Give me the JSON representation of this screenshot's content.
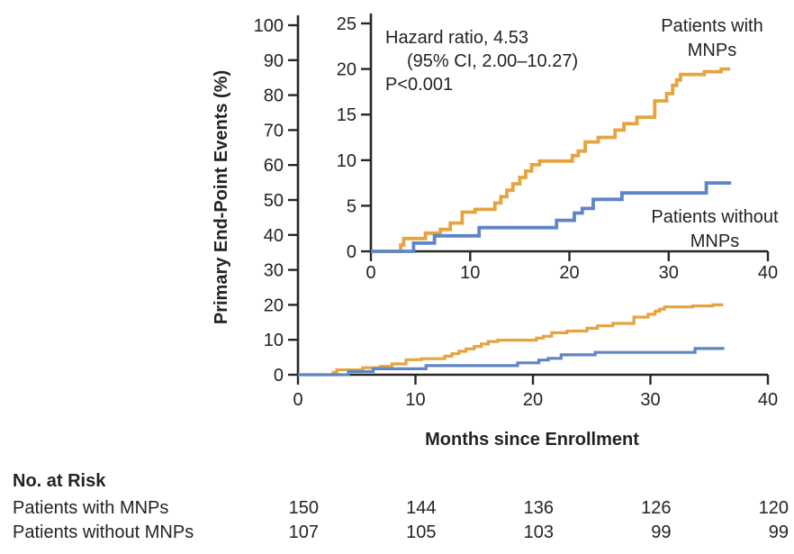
{
  "colors": {
    "with_mnps": "#E5A43F",
    "without_mnps": "#5F86C4",
    "axis": "#2B2624",
    "background": "#FFFFFF"
  },
  "chart_data": {
    "type": "line",
    "subtype": "kaplan-meier-step-with-inset",
    "title": "",
    "xlabel": "Months since Enrollment",
    "ylabel": "Primary End-Point Events (%)",
    "main_axis": {
      "xlim": [
        0,
        40
      ],
      "ylim": [
        0,
        100
      ],
      "xticks": [
        0,
        10,
        20,
        30,
        40
      ],
      "yticks": [
        0,
        10,
        20,
        30,
        40,
        50,
        60,
        70,
        80,
        90,
        100
      ],
      "grid": false
    },
    "inset_axis": {
      "xlim": [
        0,
        40
      ],
      "ylim": [
        0,
        25
      ],
      "xticks": [
        0,
        10,
        20,
        30,
        40
      ],
      "yticks": [
        0,
        5,
        10,
        15,
        20,
        25
      ],
      "grid": false
    },
    "annotation": {
      "line1": "Hazard ratio, 4.53",
      "line2": "(95% CI, 2.00–10.27)",
      "line3": "P<0.001"
    },
    "legend_position": "inline-labels",
    "series": [
      {
        "id": "with-mnps",
        "name": "Patients with MNPs",
        "label_lines": [
          "Patients with",
          "MNPs"
        ],
        "color": "#E5A43F",
        "x": [
          0,
          3.0,
          3.3,
          5.5,
          7.0,
          8.0,
          9.2,
          10.5,
          12.5,
          13.1,
          13.7,
          14.3,
          15.0,
          15.6,
          16.2,
          17.0,
          20.3,
          20.9,
          21.6,
          22.9,
          24.6,
          25.5,
          26.8,
          28.6,
          29.8,
          30.4,
          30.8,
          31.2,
          33.6,
          35.3,
          36.2
        ],
        "y": [
          0,
          0.7,
          1.4,
          2.0,
          2.4,
          3.1,
          4.3,
          4.6,
          5.3,
          6.0,
          6.7,
          7.4,
          8.1,
          8.8,
          9.5,
          9.9,
          10.5,
          11.0,
          12.0,
          12.5,
          13.3,
          14.0,
          14.7,
          16.5,
          17.3,
          18.2,
          18.8,
          19.4,
          19.7,
          20.0,
          20.0
        ]
      },
      {
        "id": "without-mnps",
        "name": "Patients without MNPs",
        "label_lines": [
          "Patients without",
          "MNPs"
        ],
        "color": "#5F86C4",
        "x": [
          0,
          4.3,
          6.4,
          10.9,
          18.7,
          20.5,
          21.3,
          22.4,
          25.3,
          33.8,
          36.3
        ],
        "y": [
          0,
          0.9,
          1.7,
          2.6,
          3.4,
          4.2,
          4.7,
          5.7,
          6.4,
          7.5,
          7.5
        ]
      }
    ]
  },
  "risk_table": {
    "title": "No. at Risk",
    "timepoints": [
      0,
      10,
      20,
      30,
      40
    ],
    "rows": [
      {
        "label": "Patients with MNPs",
        "values": [
          "150",
          "144",
          "136",
          "126",
          "120"
        ]
      },
      {
        "label": "Patients without MNPs",
        "values": [
          "107",
          "105",
          "103",
          "99",
          "99"
        ]
      }
    ]
  }
}
